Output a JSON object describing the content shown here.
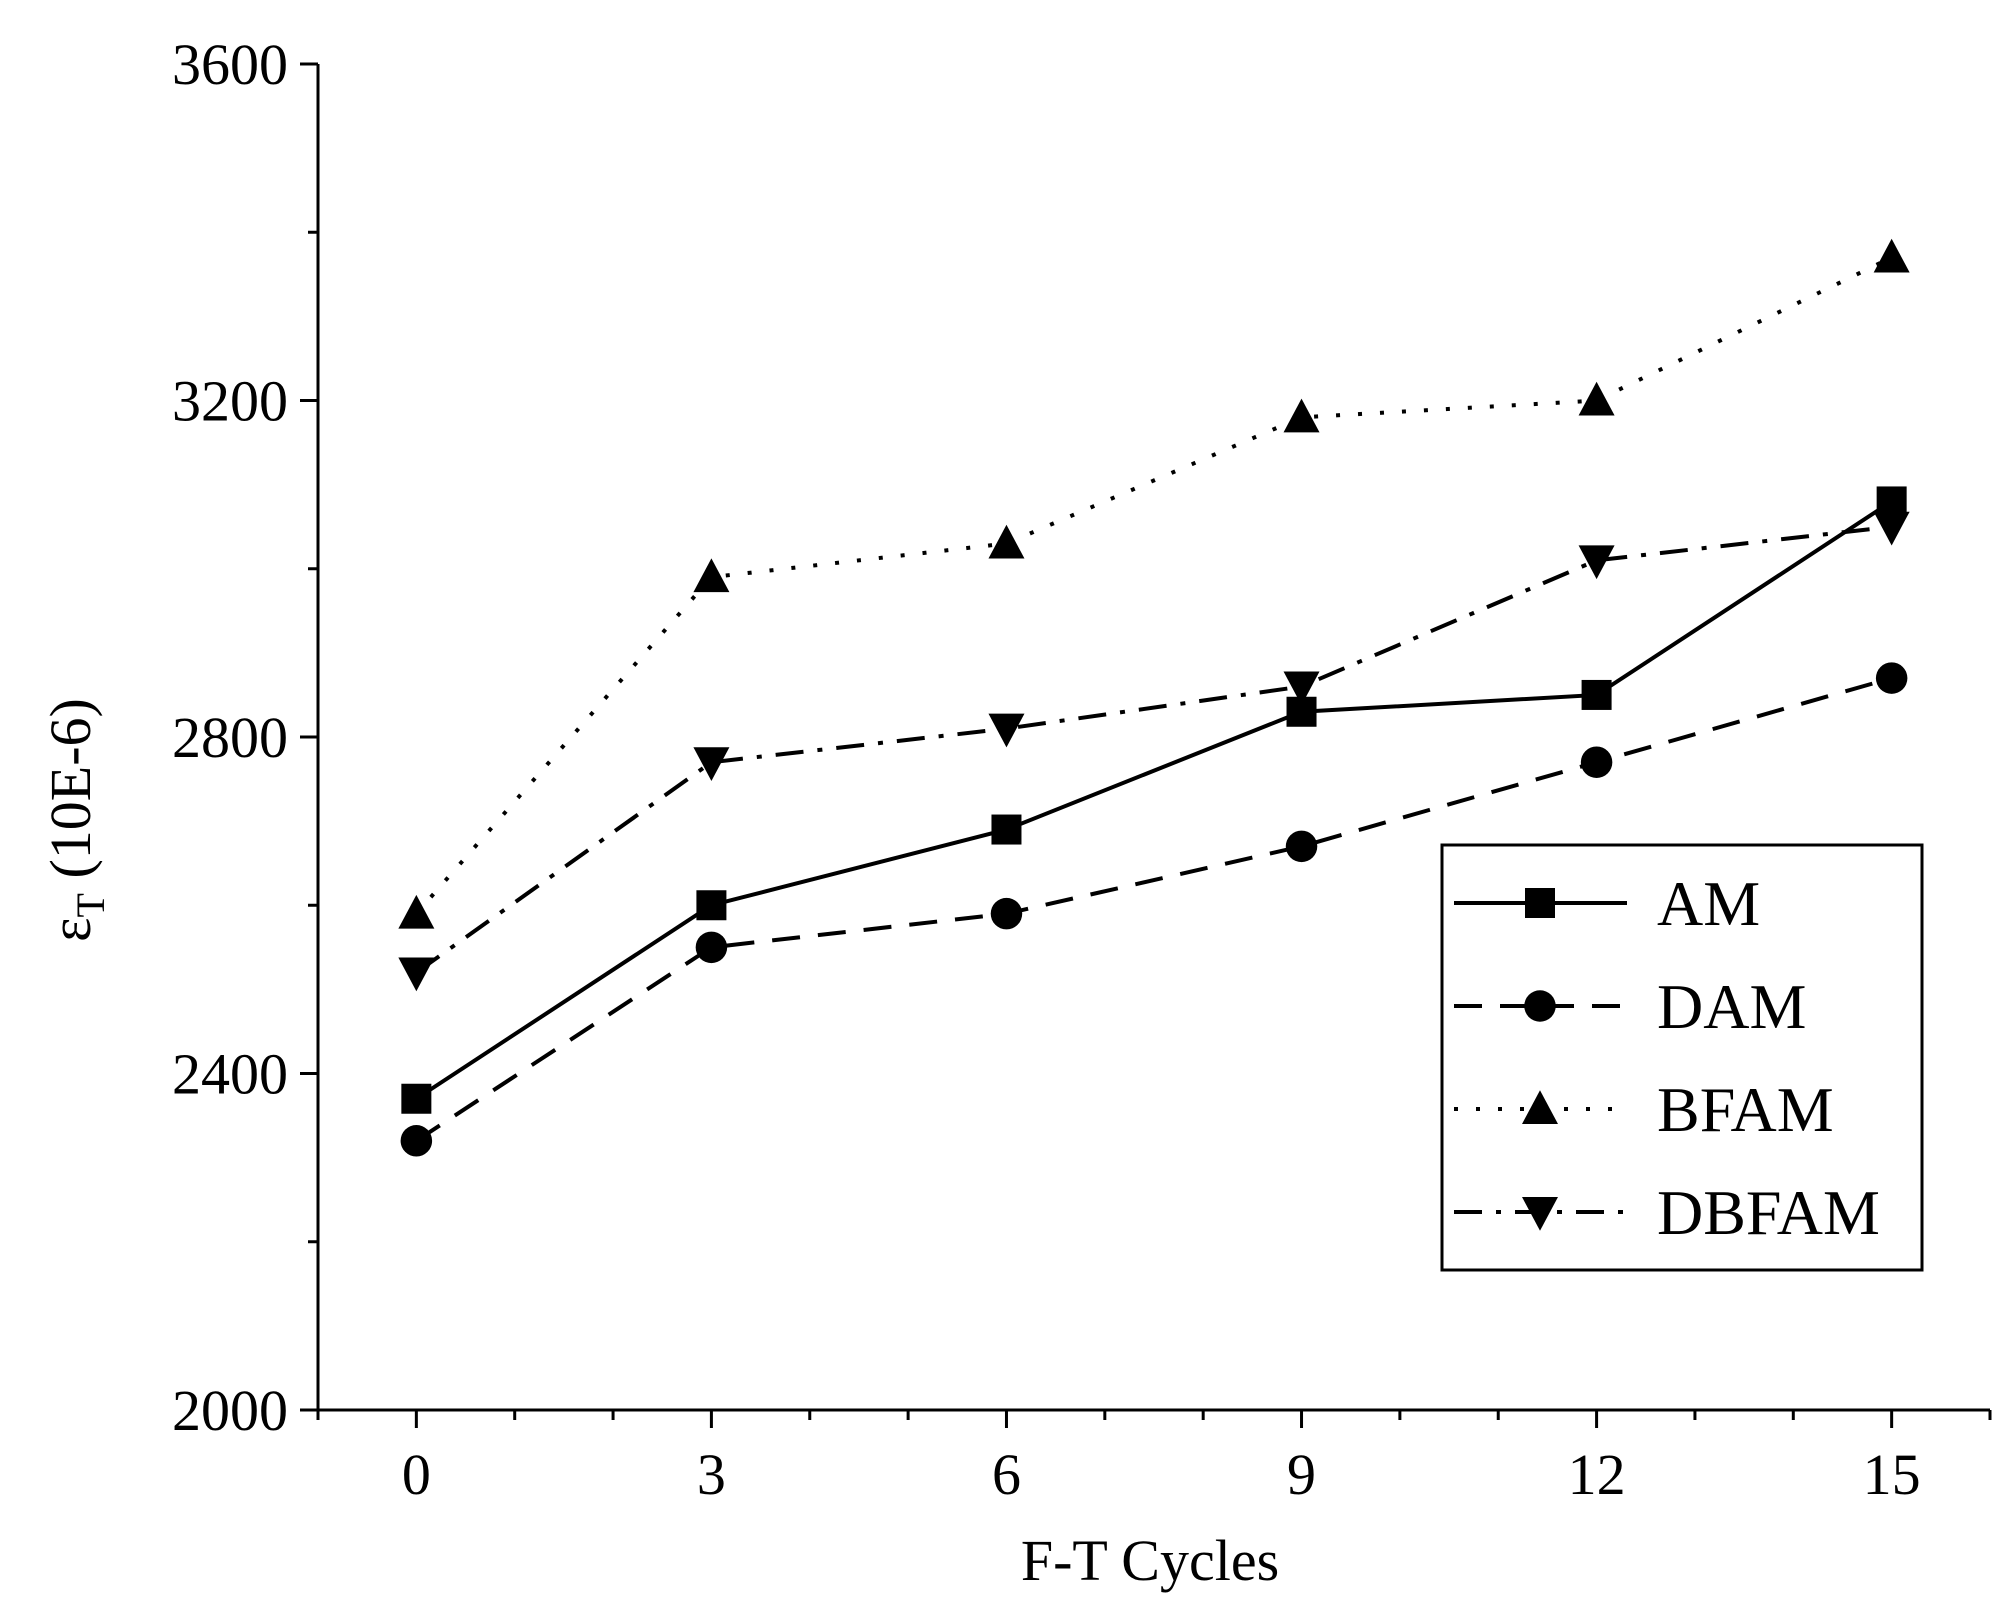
{
  "chart_data": {
    "type": "line",
    "xlabel": "F-T Cycles",
    "ylabel_main": "ε",
    "ylabel_sub": "T",
    "ylabel_rest": " (10E-6)",
    "x": [
      0,
      3,
      6,
      9,
      12,
      15
    ],
    "x_ticks": [
      "0",
      "3",
      "6",
      "9",
      "12",
      "15"
    ],
    "xlim": [
      -1,
      16
    ],
    "ylim": [
      2000,
      3600
    ],
    "y_ticks": [
      "2000",
      "2400",
      "2800",
      "3200",
      "3600"
    ],
    "y_tick_values": [
      2000,
      2400,
      2800,
      3200,
      3600
    ],
    "legend_position": "right",
    "series": [
      {
        "name": "AM",
        "marker": "square",
        "line": "solid",
        "values": [
          2370,
          2600,
          2690,
          2830,
          2850,
          3080
        ]
      },
      {
        "name": "DAM",
        "marker": "circle",
        "line": "dashed",
        "values": [
          2320,
          2550,
          2590,
          2670,
          2770,
          2870
        ]
      },
      {
        "name": "BFAM",
        "marker": "triangle-up",
        "line": "dotted",
        "values": [
          2590,
          2990,
          3030,
          3180,
          3200,
          3370
        ]
      },
      {
        "name": "DBFAM",
        "marker": "triangle-down",
        "line": "dashdot",
        "values": [
          2520,
          2770,
          2810,
          2860,
          3010,
          3050
        ]
      }
    ]
  }
}
